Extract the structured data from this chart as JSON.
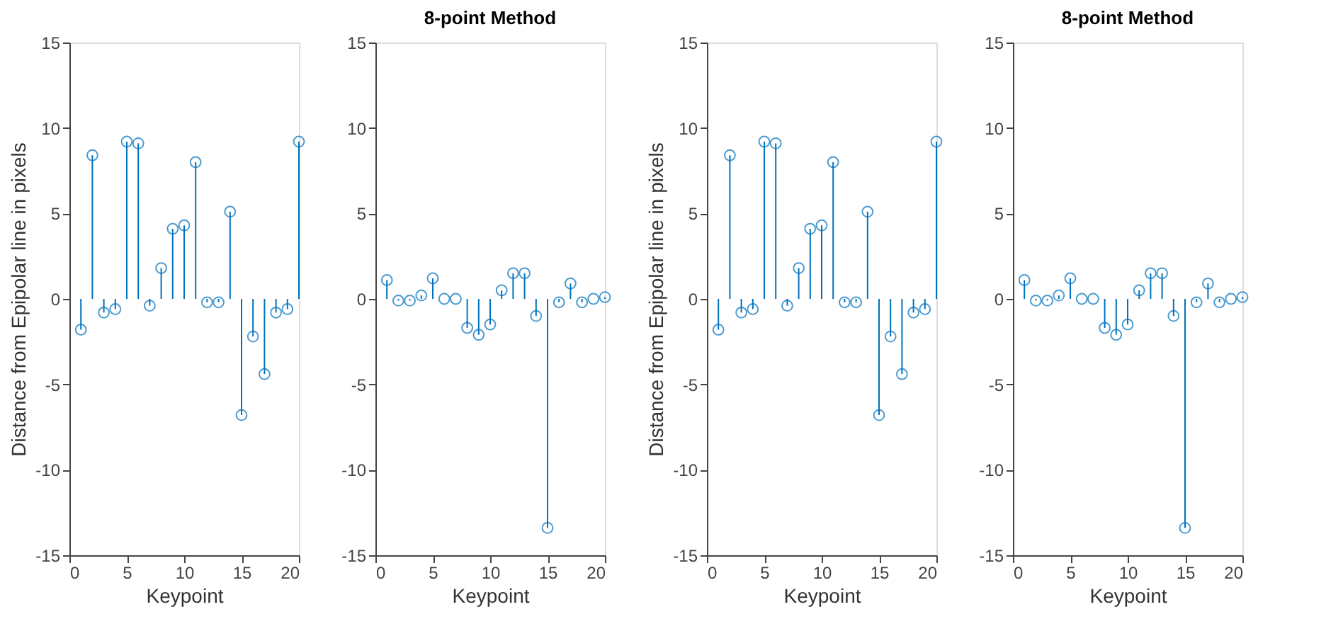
{
  "chart_data": [
    {
      "type": "lollipop",
      "ylabel": "Distance from Epipolar line in pixels",
      "xlabel": "Keypoint",
      "x": [
        1,
        2,
        3,
        4,
        5,
        6,
        7,
        8,
        9,
        10,
        11,
        12,
        13,
        14,
        15,
        16,
        17,
        18,
        19,
        20
      ],
      "values": [
        -1.8,
        8.4,
        -0.8,
        -0.6,
        9.2,
        9.1,
        -0.4,
        1.8,
        4.1,
        4.3,
        8.0,
        -0.2,
        -0.2,
        5.1,
        -6.8,
        -2.2,
        -4.4,
        -0.8,
        -0.6,
        9.2
      ],
      "color": "#0072bd",
      "marker": "circle",
      "grid": false,
      "xlim": [
        0,
        20
      ],
      "xticks": [
        0,
        5,
        10,
        15,
        20
      ],
      "ylim": [
        -15,
        15
      ],
      "yticks": [
        -15,
        -10,
        -5,
        0,
        5,
        10,
        15
      ]
    },
    {
      "type": "lollipop",
      "title": "8-point Method",
      "xlabel": "Keypoint",
      "x": [
        1,
        2,
        3,
        4,
        5,
        6,
        7,
        8,
        9,
        10,
        11,
        12,
        13,
        14,
        15,
        16,
        17,
        18,
        19,
        20
      ],
      "values": [
        1.1,
        -0.1,
        -0.1,
        0.2,
        1.2,
        0.0,
        0.0,
        -1.7,
        -2.1,
        -1.5,
        0.5,
        1.5,
        1.5,
        -1.0,
        -13.4,
        -0.2,
        0.9,
        -0.2,
        0.0,
        0.1
      ],
      "color": "#0072bd",
      "marker": "circle",
      "grid": false,
      "xlim": [
        0,
        20
      ],
      "xticks": [
        0,
        5,
        10,
        15,
        20
      ],
      "ylim": [
        -15,
        15
      ],
      "yticks": [
        -15,
        -10,
        -5,
        0,
        5,
        10,
        15
      ]
    },
    {
      "type": "lollipop",
      "ylabel": "Distance from Epipolar line in pixels",
      "xlabel": "Keypoint",
      "x": [
        1,
        2,
        3,
        4,
        5,
        6,
        7,
        8,
        9,
        10,
        11,
        12,
        13,
        14,
        15,
        16,
        17,
        18,
        19,
        20
      ],
      "values": [
        -1.8,
        8.4,
        -0.8,
        -0.6,
        9.2,
        9.1,
        -0.4,
        1.8,
        4.1,
        4.3,
        8.0,
        -0.2,
        -0.2,
        5.1,
        -6.8,
        -2.2,
        -4.4,
        -0.8,
        -0.6,
        9.2
      ],
      "color": "#0072bd",
      "marker": "circle",
      "grid": false,
      "xlim": [
        0,
        20
      ],
      "xticks": [
        0,
        5,
        10,
        15,
        20
      ],
      "ylim": [
        -15,
        15
      ],
      "yticks": [
        -15,
        -10,
        -5,
        0,
        5,
        10,
        15
      ]
    },
    {
      "type": "lollipop",
      "title": "8-point Method",
      "xlabel": "Keypoint",
      "x": [
        1,
        2,
        3,
        4,
        5,
        6,
        7,
        8,
        9,
        10,
        11,
        12,
        13,
        14,
        15,
        16,
        17,
        18,
        19,
        20
      ],
      "values": [
        1.1,
        -0.1,
        -0.1,
        0.2,
        1.2,
        0.0,
        0.0,
        -1.7,
        -2.1,
        -1.5,
        0.5,
        1.5,
        1.5,
        -1.0,
        -13.4,
        -0.2,
        0.9,
        -0.2,
        0.0,
        0.1
      ],
      "color": "#0072bd",
      "marker": "circle",
      "grid": false,
      "xlim": [
        0,
        20
      ],
      "xticks": [
        0,
        5,
        10,
        15,
        20
      ],
      "ylim": [
        -15,
        15
      ],
      "yticks": [
        -15,
        -10,
        -5,
        0,
        5,
        10,
        15
      ]
    }
  ]
}
